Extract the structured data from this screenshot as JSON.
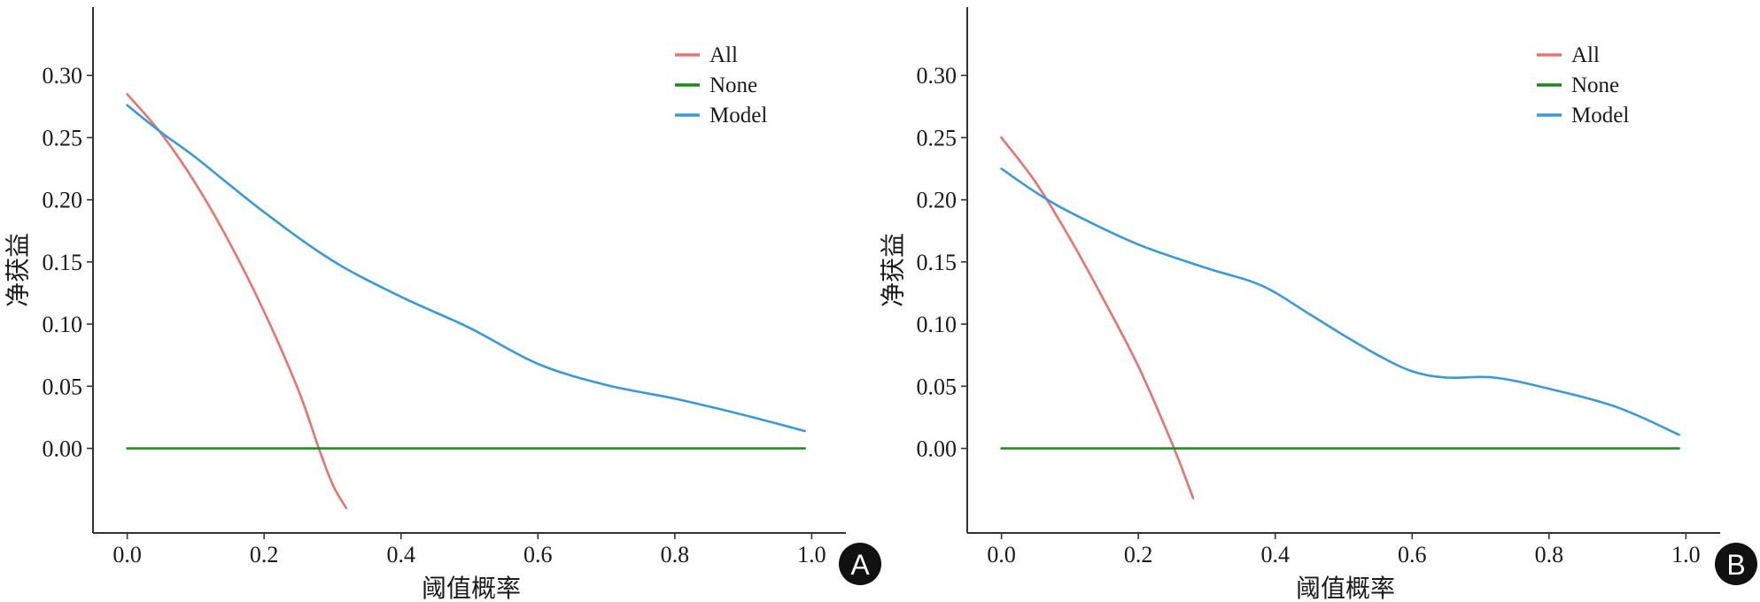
{
  "chart_data": [
    {
      "type": "line",
      "panel_label": "A",
      "xlabel": "阈值概率",
      "ylabel": "净获益",
      "xlim": [
        -0.05,
        1.05
      ],
      "ylim": [
        -0.068,
        0.355
      ],
      "x_ticks": [
        "0.0",
        "0.2",
        "0.4",
        "0.6",
        "0.8",
        "1.0"
      ],
      "y_ticks": [
        "0.00",
        "0.05",
        "0.10",
        "0.15",
        "0.20",
        "0.25",
        "0.30"
      ],
      "legend": [
        "All",
        "None",
        "Model"
      ],
      "legend_position": "top-right",
      "series": [
        {
          "name": "All",
          "color": "#e8736f",
          "x": [
            0.0,
            0.05,
            0.1,
            0.15,
            0.2,
            0.25,
            0.28,
            0.3,
            0.32
          ],
          "y": [
            0.285,
            0.253,
            0.213,
            0.165,
            0.11,
            0.047,
            0.0,
            -0.029,
            -0.048
          ]
        },
        {
          "name": "None",
          "color": "#1a8a1a",
          "x": [
            0.0,
            0.99
          ],
          "y": [
            0.0,
            0.0
          ]
        },
        {
          "name": "Model",
          "color": "#3a9ad9",
          "x": [
            0.0,
            0.05,
            0.1,
            0.2,
            0.3,
            0.4,
            0.5,
            0.6,
            0.7,
            0.8,
            0.9,
            0.99
          ],
          "y": [
            0.276,
            0.254,
            0.234,
            0.19,
            0.151,
            0.122,
            0.097,
            0.068,
            0.051,
            0.04,
            0.027,
            0.014
          ]
        }
      ]
    },
    {
      "type": "line",
      "panel_label": "B",
      "xlabel": "阈值概率",
      "ylabel": "净获益",
      "xlim": [
        -0.05,
        1.05
      ],
      "ylim": [
        -0.068,
        0.355
      ],
      "x_ticks": [
        "0.0",
        "0.2",
        "0.4",
        "0.6",
        "0.8",
        "1.0"
      ],
      "y_ticks": [
        "0.00",
        "0.05",
        "0.10",
        "0.15",
        "0.20",
        "0.25",
        "0.30"
      ],
      "legend": [
        "All",
        "None",
        "Model"
      ],
      "legend_position": "top-right",
      "series": [
        {
          "name": "All",
          "color": "#e8736f",
          "x": [
            0.0,
            0.05,
            0.1,
            0.15,
            0.2,
            0.25,
            0.28
          ],
          "y": [
            0.25,
            0.214,
            0.169,
            0.119,
            0.066,
            0.003,
            -0.04
          ]
        },
        {
          "name": "None",
          "color": "#1a8a1a",
          "x": [
            0.0,
            0.99
          ],
          "y": [
            0.0,
            0.0
          ]
        },
        {
          "name": "Model",
          "color": "#3a9ad9",
          "x": [
            0.0,
            0.05,
            0.1,
            0.2,
            0.3,
            0.38,
            0.45,
            0.5,
            0.55,
            0.6,
            0.65,
            0.72,
            0.8,
            0.9,
            0.99
          ],
          "y": [
            0.225,
            0.206,
            0.19,
            0.164,
            0.145,
            0.131,
            0.108,
            0.091,
            0.075,
            0.062,
            0.057,
            0.057,
            0.048,
            0.033,
            0.011
          ]
        }
      ]
    }
  ]
}
